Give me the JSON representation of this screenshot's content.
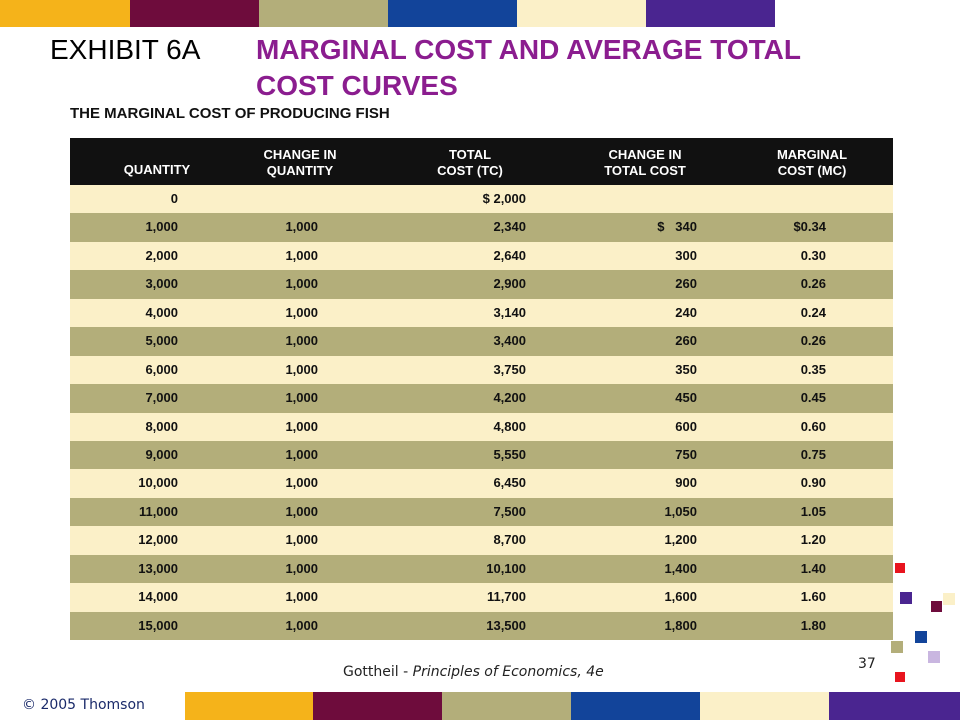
{
  "header": {
    "exhibit": "EXHIBIT 6A",
    "title_line1": "MARGINAL COST AND AVERAGE TOTAL",
    "title_line2": "COST CURVES"
  },
  "table": {
    "title": "THE MARGINAL COST OF PRODUCING FISH",
    "columns": [
      [
        "QUANTITY"
      ],
      [
        "CHANGE IN",
        "QUANTITY"
      ],
      [
        "TOTAL",
        "COST (TC)"
      ],
      [
        "CHANGE IN",
        "TOTAL COST"
      ],
      [
        "MARGINAL",
        "COST (MC)"
      ]
    ],
    "rows": [
      [
        "0",
        null,
        "$ 2,000",
        null,
        null
      ],
      [
        "1,000",
        "1,000",
        "2,340",
        "$   340",
        "$0.34"
      ],
      [
        "2,000",
        "1,000",
        "2,640",
        "300",
        "0.30"
      ],
      [
        "3,000",
        "1,000",
        "2,900",
        "260",
        "0.26"
      ],
      [
        "4,000",
        "1,000",
        "3,140",
        "240",
        "0.24"
      ],
      [
        "5,000",
        "1,000",
        "3,400",
        "260",
        "0.26"
      ],
      [
        "6,000",
        "1,000",
        "3,750",
        "350",
        "0.35"
      ],
      [
        "7,000",
        "1,000",
        "4,200",
        "450",
        "0.45"
      ],
      [
        "8,000",
        "1,000",
        "4,800",
        "600",
        "0.60"
      ],
      [
        "9,000",
        "1,000",
        "5,550",
        "750",
        "0.75"
      ],
      [
        "10,000",
        "1,000",
        "6,450",
        "900",
        "0.90"
      ],
      [
        "11,000",
        "1,000",
        "7,500",
        "1,050",
        "1.05"
      ],
      [
        "12,000",
        "1,000",
        "8,700",
        "1,200",
        "1.20"
      ],
      [
        "13,000",
        "1,000",
        "10,100",
        "1,400",
        "1.40"
      ],
      [
        "14,000",
        "1,000",
        "11,700",
        "1,600",
        "1.60"
      ],
      [
        "15,000",
        "1,000",
        "13,500",
        "1,800",
        "1.80"
      ]
    ]
  },
  "footer": {
    "source_author": "Gottheil - ",
    "source_book": "Principles of Economics, 4e",
    "page": "37",
    "copyright": "© 2005 Thomson"
  }
}
